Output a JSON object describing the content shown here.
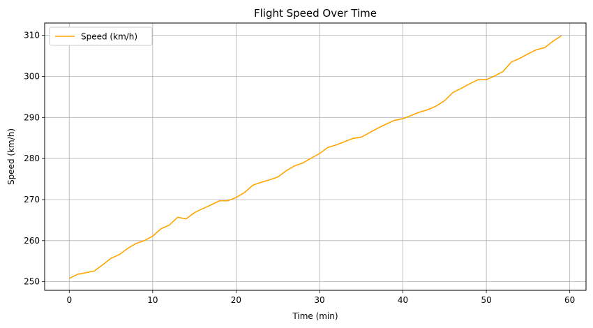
{
  "chart_data": {
    "type": "line",
    "title": "Flight Speed Over Time",
    "xlabel": "Time (min)",
    "ylabel": "Speed (km/h)",
    "xlim": [
      -2.95,
      61.95
    ],
    "ylim": [
      247.9,
      313.0
    ],
    "xticks": [
      0,
      10,
      20,
      30,
      40,
      50,
      60
    ],
    "yticks": [
      250,
      260,
      270,
      280,
      290,
      300,
      310
    ],
    "grid": true,
    "legend_position": "top-left",
    "series": [
      {
        "name": "Speed (km/h)",
        "color": "#ffa500",
        "x": [
          0,
          1,
          2,
          3,
          4,
          5,
          6,
          7,
          8,
          9,
          10,
          11,
          12,
          13,
          14,
          15,
          16,
          17,
          18,
          19,
          20,
          21,
          22,
          23,
          24,
          25,
          26,
          27,
          28,
          29,
          30,
          31,
          32,
          33,
          34,
          35,
          36,
          37,
          38,
          39,
          40,
          41,
          42,
          43,
          44,
          45,
          46,
          47,
          48,
          49,
          50,
          51,
          52,
          53,
          54,
          55,
          56,
          57,
          58,
          59
        ],
        "y": [
          250.8,
          251.8,
          252.2,
          252.6,
          254.1,
          255.7,
          256.6,
          258.1,
          259.3,
          260.0,
          261.1,
          262.9,
          263.8,
          265.7,
          265.3,
          266.8,
          267.8,
          268.7,
          269.7,
          269.7,
          270.5,
          271.7,
          273.5,
          274.2,
          274.8,
          275.5,
          277.0,
          278.2,
          278.9,
          280.1,
          281.2,
          282.7,
          283.3,
          284.1,
          284.9,
          285.2,
          286.3,
          287.4,
          288.4,
          289.3,
          289.7,
          290.5,
          291.3,
          291.9,
          292.8,
          294.1,
          296.1,
          297.1,
          298.2,
          299.2,
          299.2,
          300.1,
          301.2,
          303.5,
          304.4,
          305.5,
          306.5,
          307.0,
          308.6,
          309.9
        ]
      }
    ]
  }
}
